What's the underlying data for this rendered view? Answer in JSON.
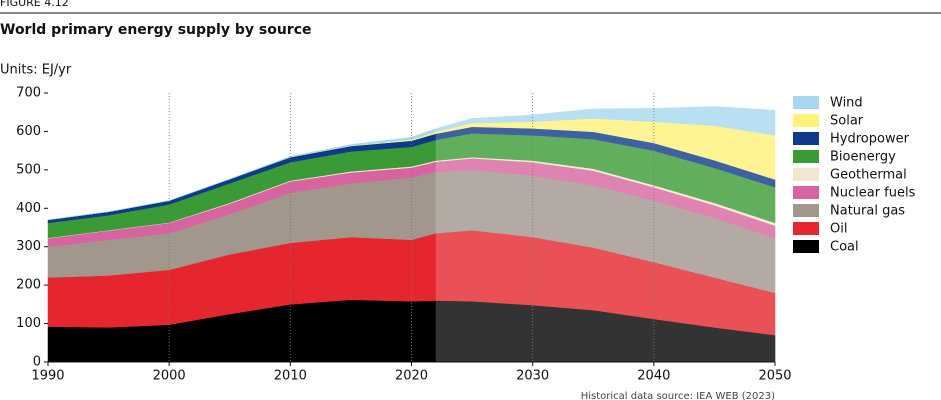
{
  "chart_data": {
    "type": "stacked_area",
    "figure_label": "FIGURE 4.12",
    "title": "World primary energy supply by source",
    "units_label": "Units: EJ/yr",
    "source": "Historical data source: IEA WEB (2023)",
    "x": [
      1990,
      1995,
      2000,
      2005,
      2010,
      2015,
      2020,
      2022,
      2025,
      2030,
      2035,
      2040,
      2045,
      2050
    ],
    "projection_start": 2022,
    "series": [
      {
        "name": "Coal",
        "color": "#000000",
        "values": [
          92,
          90,
          97,
          125,
          150,
          162,
          158,
          160,
          158,
          148,
          135,
          112,
          90,
          70
        ]
      },
      {
        "name": "Oil",
        "color": "#e5262e",
        "values": [
          128,
          135,
          143,
          155,
          160,
          163,
          160,
          175,
          185,
          177,
          163,
          148,
          130,
          110
        ]
      },
      {
        "name": "Natural gas",
        "color": "#a1978c",
        "values": [
          80,
          93,
          95,
          105,
          130,
          140,
          162,
          160,
          157,
          160,
          162,
          160,
          155,
          142
        ]
      },
      {
        "name": "Nuclear fuels",
        "color": "#d764a0",
        "values": [
          22,
          24,
          27,
          27,
          30,
          28,
          26,
          26,
          30,
          35,
          38,
          35,
          33,
          33
        ]
      },
      {
        "name": "Geothermal",
        "color": "#f3e6d0",
        "values": [
          1,
          1,
          1,
          2,
          2,
          3,
          3,
          3,
          3,
          4,
          5,
          5,
          6,
          7
        ]
      },
      {
        "name": "Bioenergy",
        "color": "#3a9a35",
        "values": [
          39,
          39,
          47,
          51,
          48,
          52,
          51,
          54,
          62,
          66,
          77,
          90,
          91,
          93
        ]
      },
      {
        "name": "Hydropower",
        "color": "#0d3a8c",
        "values": [
          8,
          9,
          10,
          11,
          13,
          14,
          16,
          16,
          17,
          18,
          19,
          20,
          20,
          20
        ]
      },
      {
        "name": "Solar",
        "color": "#fff27a",
        "values": [
          0,
          0,
          0,
          0,
          0.5,
          1,
          3,
          5,
          10,
          17,
          35,
          55,
          90,
          115
        ]
      },
      {
        "name": "Wind",
        "color": "#a8d8f0",
        "values": [
          0,
          0,
          0,
          0.5,
          1.5,
          3,
          6,
          8,
          12,
          18,
          25,
          35,
          50,
          65
        ]
      }
    ],
    "xlim": [
      1990,
      2050
    ],
    "xticks": [
      1990,
      2000,
      2010,
      2020,
      2030,
      2040,
      2050
    ],
    "ylim": [
      0,
      700
    ],
    "yticks": [
      0,
      100,
      200,
      300,
      400,
      500,
      600,
      700
    ],
    "grid": true
  }
}
